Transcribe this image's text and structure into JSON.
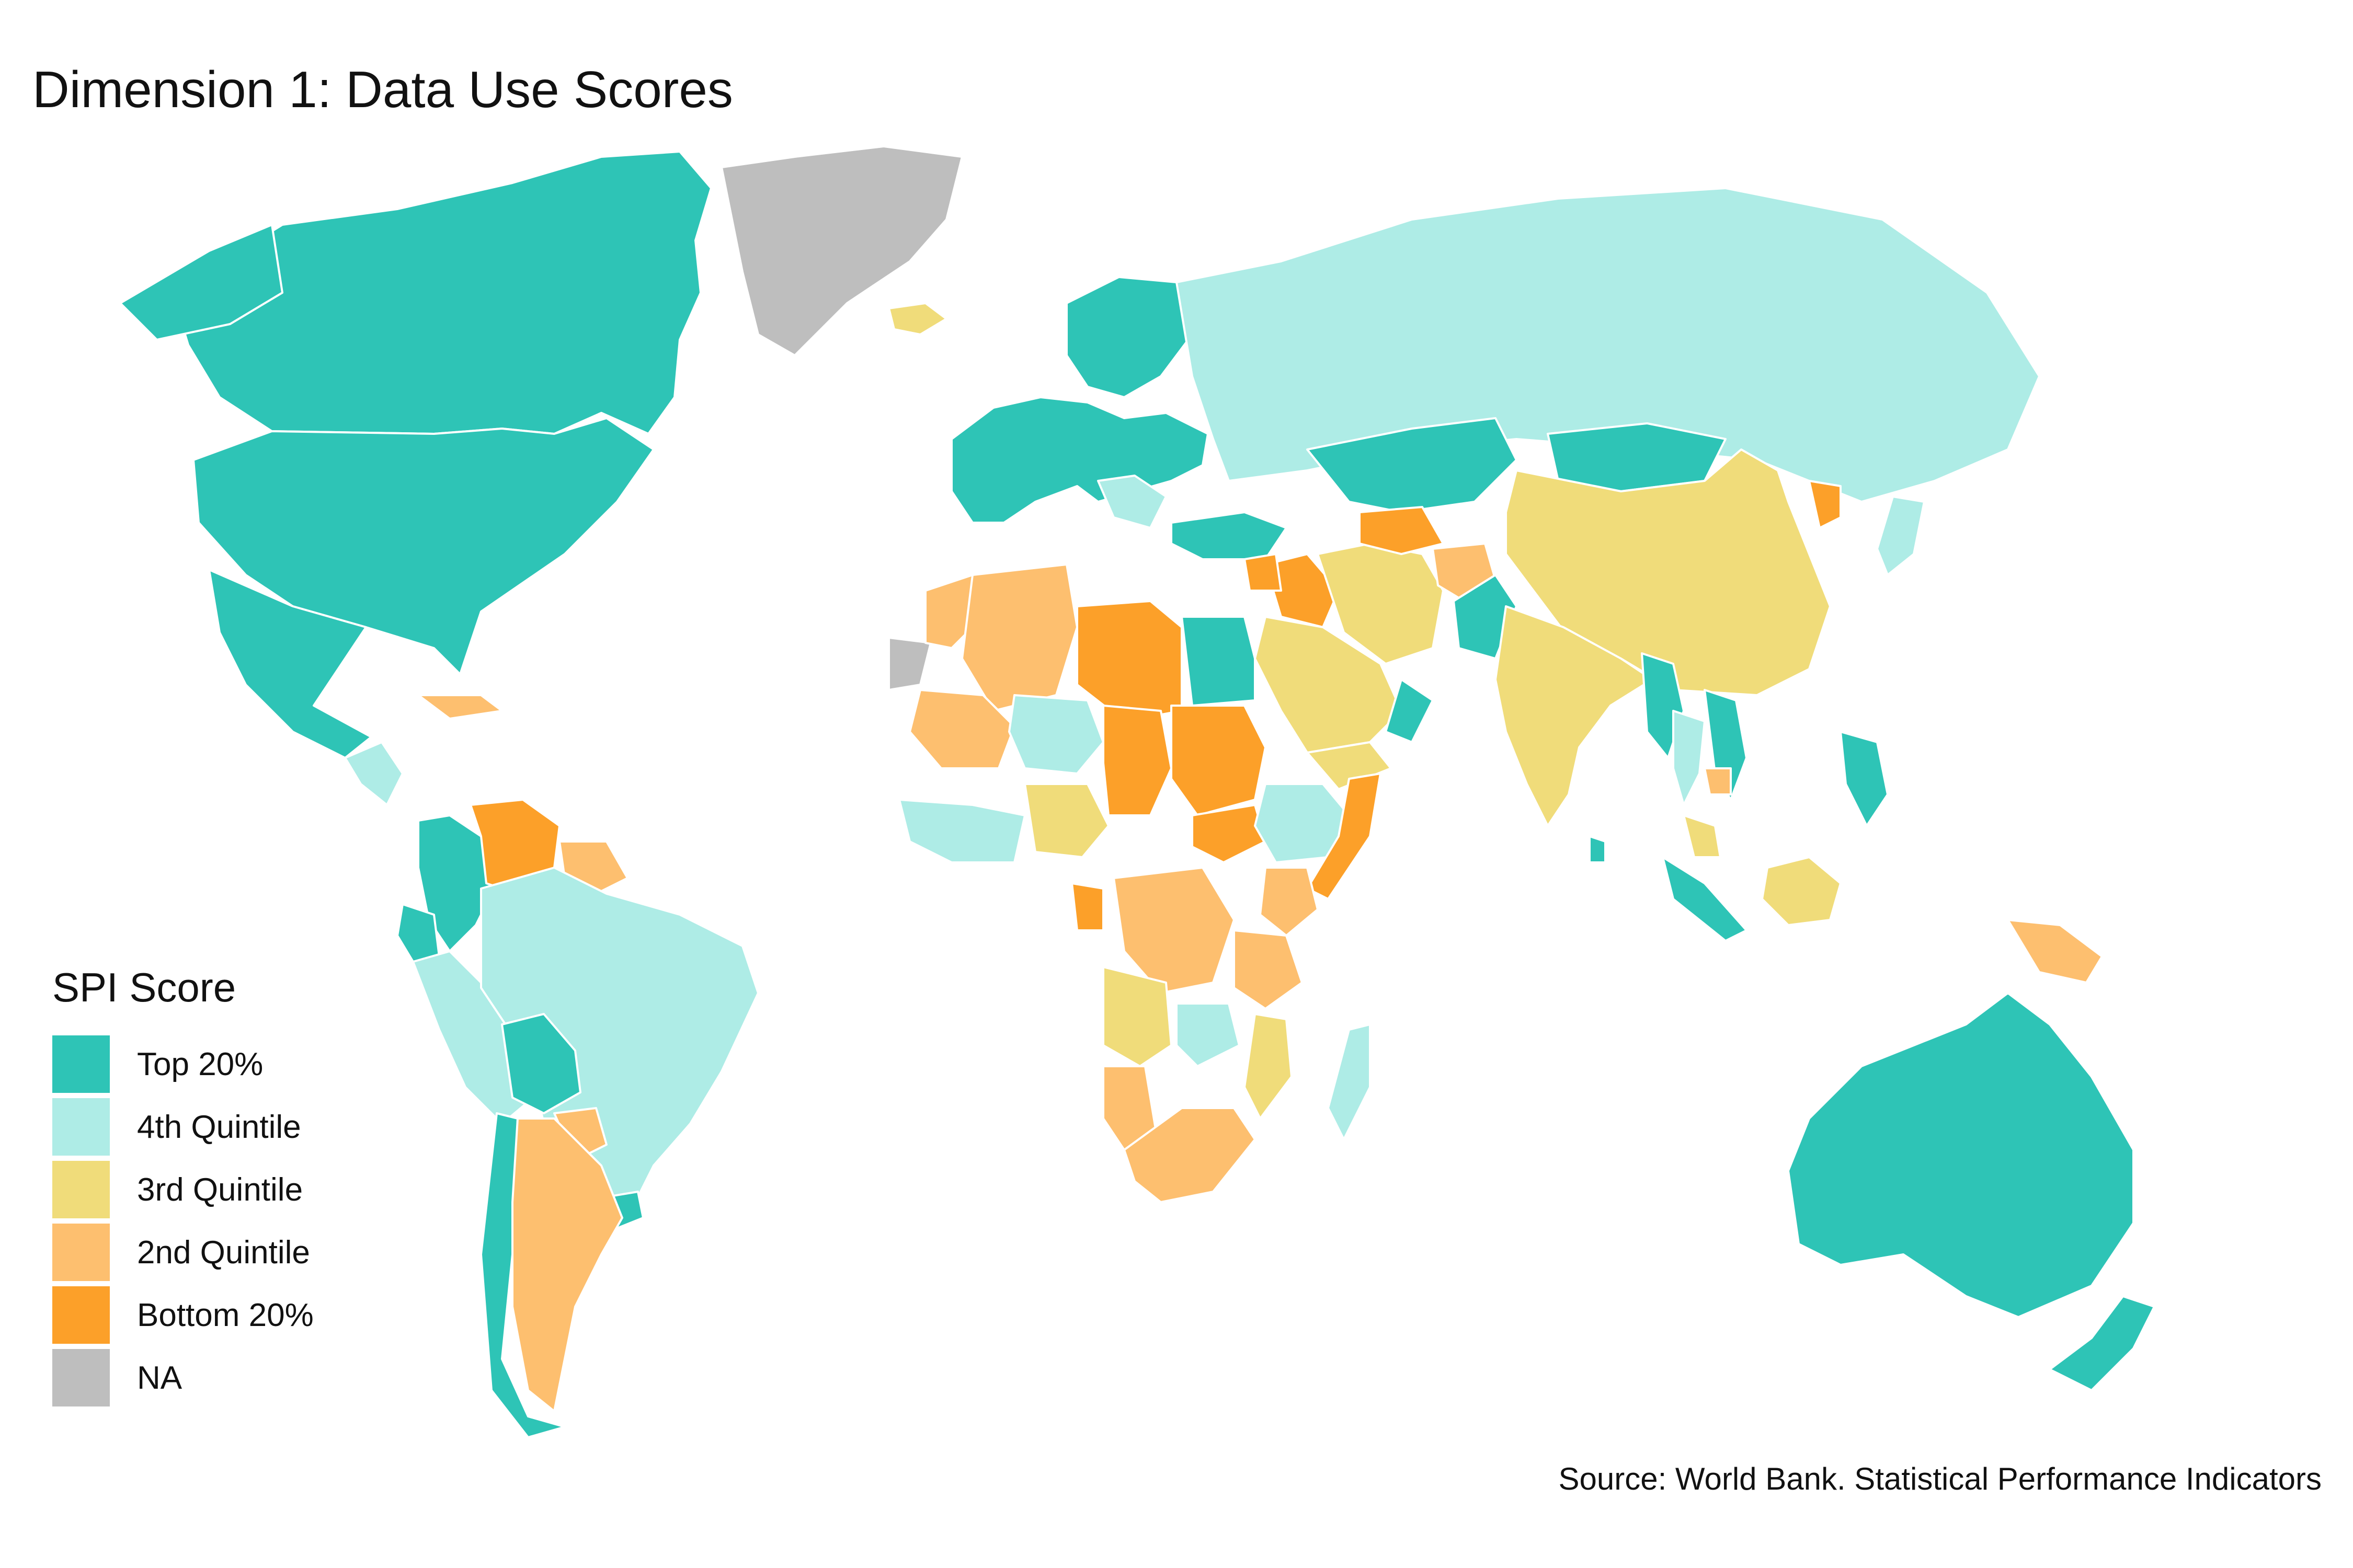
{
  "title": "Dimension 1: Data Use Scores",
  "source": "Source: World Bank. Statistical Performance Indicators",
  "legend": {
    "title": "SPI Score",
    "items": [
      {
        "label": "Top 20%",
        "color": "#2ec4b6"
      },
      {
        "label": "4th Quintile",
        "color": "#aeece6"
      },
      {
        "label": "3rd Quintile",
        "color": "#f0dc7a"
      },
      {
        "label": "2nd Quintile",
        "color": "#fdbf6f"
      },
      {
        "label": "Bottom 20%",
        "color": "#fca029"
      },
      {
        "label": "NA",
        "color": "#bebebe"
      }
    ]
  },
  "regions": [
    {
      "name": "Canada",
      "category": "Top 20%"
    },
    {
      "name": "United States",
      "category": "Top 20%"
    },
    {
      "name": "Alaska",
      "category": "Top 20%"
    },
    {
      "name": "Greenland",
      "category": "NA"
    },
    {
      "name": "Mexico",
      "category": "Top 20%"
    },
    {
      "name": "Central America",
      "category": "4th Quintile"
    },
    {
      "name": "Cuba",
      "category": "2nd Quintile"
    },
    {
      "name": "Colombia",
      "category": "Top 20%"
    },
    {
      "name": "Venezuela",
      "category": "Bottom 20%"
    },
    {
      "name": "Guyana",
      "category": "2nd Quintile"
    },
    {
      "name": "Ecuador",
      "category": "Top 20%"
    },
    {
      "name": "Peru",
      "category": "4th Quintile"
    },
    {
      "name": "Brazil",
      "category": "4th Quintile"
    },
    {
      "name": "Bolivia",
      "category": "Top 20%"
    },
    {
      "name": "Paraguay",
      "category": "2nd Quintile"
    },
    {
      "name": "Uruguay",
      "category": "Top 20%"
    },
    {
      "name": "Chile",
      "category": "Top 20%"
    },
    {
      "name": "Argentina",
      "category": "2nd Quintile"
    },
    {
      "name": "Iceland",
      "category": "3rd Quintile"
    },
    {
      "name": "Europe",
      "category": "Top 20%"
    },
    {
      "name": "Balkans",
      "category": "4th Quintile"
    },
    {
      "name": "Scandinavia",
      "category": "Top 20%"
    },
    {
      "name": "Russia",
      "category": "4th Quintile"
    },
    {
      "name": "Kazakhstan",
      "category": "Top 20%"
    },
    {
      "name": "Mongolia",
      "category": "Top 20%"
    },
    {
      "name": "China",
      "category": "3rd Quintile"
    },
    {
      "name": "North Korea",
      "category": "Bottom 20%"
    },
    {
      "name": "Japan",
      "category": "4th Quintile"
    },
    {
      "name": "Turkey",
      "category": "Top 20%"
    },
    {
      "name": "Iraq",
      "category": "Bottom 20%"
    },
    {
      "name": "Syria",
      "category": "Bottom 20%"
    },
    {
      "name": "Saudi Arabia",
      "category": "3rd Quintile"
    },
    {
      "name": "Yemen",
      "category": "3rd Quintile"
    },
    {
      "name": "Oman",
      "category": "Top 20%"
    },
    {
      "name": "Iran",
      "category": "3rd Quintile"
    },
    {
      "name": "Turkmenistan",
      "category": "Bottom 20%"
    },
    {
      "name": "Afghanistan",
      "category": "2nd Quintile"
    },
    {
      "name": "Pakistan",
      "category": "Top 20%"
    },
    {
      "name": "India",
      "category": "3rd Quintile"
    },
    {
      "name": "Sri Lanka",
      "category": "Top 20%"
    },
    {
      "name": "Myanmar",
      "category": "Top 20%"
    },
    {
      "name": "Thailand",
      "category": "4th Quintile"
    },
    {
      "name": "Vietnam",
      "category": "Top 20%"
    },
    {
      "name": "Cambodia",
      "category": "2nd Quintile"
    },
    {
      "name": "Philippines",
      "category": "Top 20%"
    },
    {
      "name": "Malaysia",
      "category": "3rd Quintile"
    },
    {
      "name": "Sumatra",
      "category": "Top 20%"
    },
    {
      "name": "Borneo",
      "category": "3rd Quintile"
    },
    {
      "name": "Papua New Guinea",
      "category": "2nd Quintile"
    },
    {
      "name": "Australia",
      "category": "Top 20%"
    },
    {
      "name": "New Zealand",
      "category": "Top 20%"
    },
    {
      "name": "Western Sahara",
      "category": "NA"
    },
    {
      "name": "Morocco",
      "category": "2nd Quintile"
    },
    {
      "name": "Algeria",
      "category": "2nd Quintile"
    },
    {
      "name": "Libya",
      "category": "Bottom 20%"
    },
    {
      "name": "Egypt",
      "category": "Top 20%"
    },
    {
      "name": "Mali",
      "category": "2nd Quintile"
    },
    {
      "name": "Niger",
      "category": "4th Quintile"
    },
    {
      "name": "Chad",
      "category": "Bottom 20%"
    },
    {
      "name": "Sudan",
      "category": "Bottom 20%"
    },
    {
      "name": "South Sudan",
      "category": "Bottom 20%"
    },
    {
      "name": "Ethiopia",
      "category": "4th Quintile"
    },
    {
      "name": "Somalia",
      "category": "Bottom 20%"
    },
    {
      "name": "West Africa coast",
      "category": "4th Quintile"
    },
    {
      "name": "Nigeria",
      "category": "3rd Quintile"
    },
    {
      "name": "Gabon",
      "category": "Bottom 20%"
    },
    {
      "name": "DR Congo",
      "category": "2nd Quintile"
    },
    {
      "name": "Kenya",
      "category": "2nd Quintile"
    },
    {
      "name": "Tanzania",
      "category": "2nd Quintile"
    },
    {
      "name": "Angola",
      "category": "3rd Quintile"
    },
    {
      "name": "Zambia",
      "category": "4th Quintile"
    },
    {
      "name": "Mozambique",
      "category": "3rd Quintile"
    },
    {
      "name": "Namibia",
      "category": "2nd Quintile"
    },
    {
      "name": "South Africa",
      "category": "2nd Quintile"
    },
    {
      "name": "Madagascar",
      "category": "4th Quintile"
    }
  ]
}
